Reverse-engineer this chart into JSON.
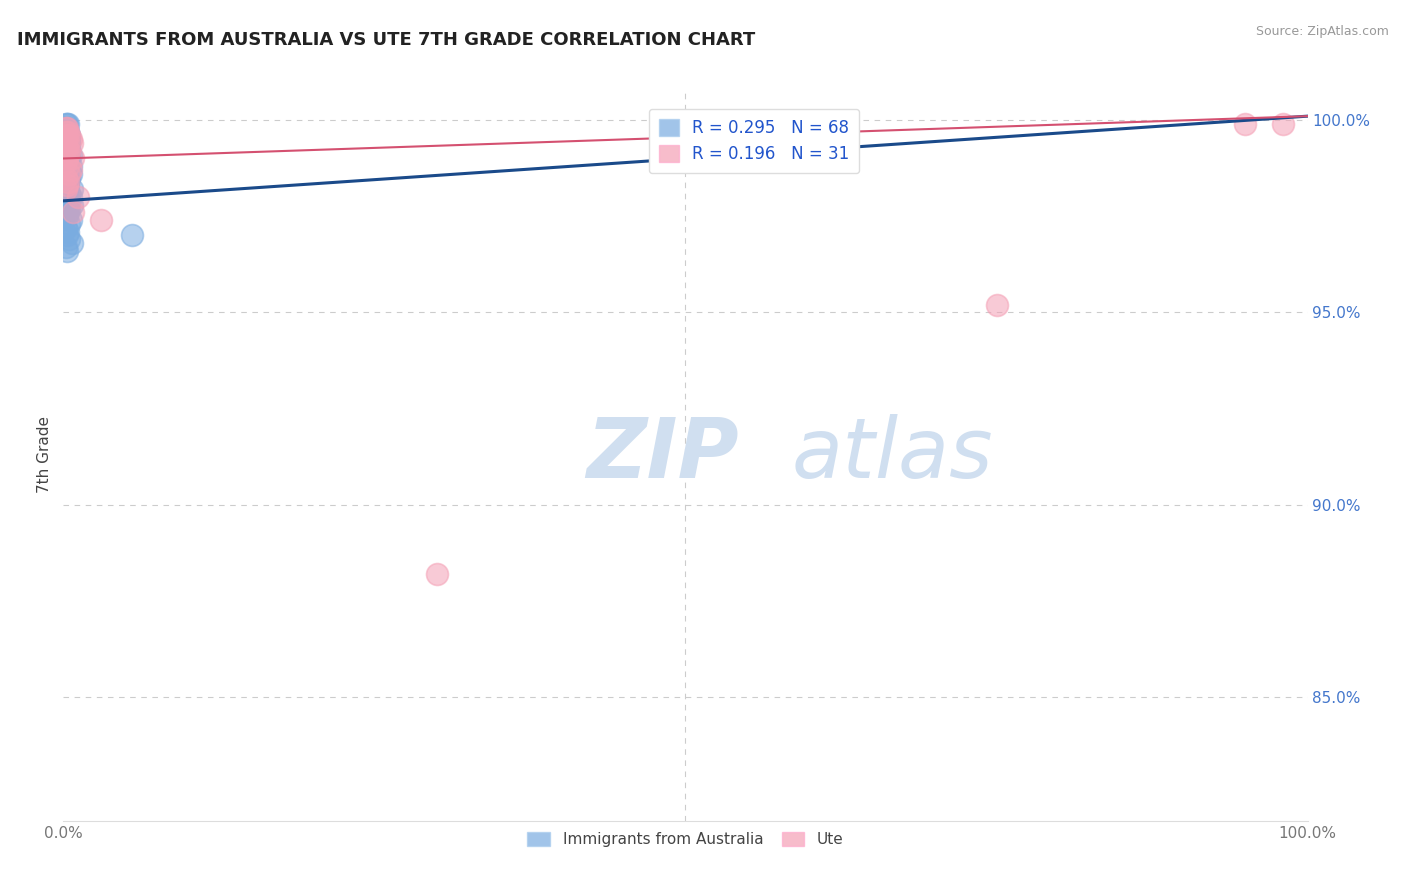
{
  "title": "IMMIGRANTS FROM AUSTRALIA VS UTE 7TH GRADE CORRELATION CHART",
  "source_text": "Source: ZipAtlas.com",
  "ylabel": "7th Grade",
  "xmin": 0.0,
  "xmax": 1.0,
  "ymin": 0.818,
  "ymax": 1.008,
  "xtick_positions": [
    0.0,
    0.5,
    1.0
  ],
  "xtick_labels": [
    "0.0%",
    "",
    "100.0%"
  ],
  "ytick_values": [
    0.85,
    0.9,
    0.95,
    1.0
  ],
  "ytick_labels": [
    "85.0%",
    "90.0%",
    "95.0%",
    "100.0%"
  ],
  "legend_line1": "R = 0.295   N = 68",
  "legend_line2": "R = 0.196   N = 31",
  "blue_color": "#7aace0",
  "pink_color": "#f4a0b5",
  "trendline_blue_color": "#1a4a8a",
  "trendline_pink_color": "#d45070",
  "watermark_color": "#d0dff0",
  "title_color": "#222222",
  "title_fontsize": 13,
  "source_fontsize": 9,
  "tick_label_color_y": "#4477cc",
  "tick_label_color_x": "#777777",
  "ylabel_color": "#444444",
  "grid_color": "#cccccc",
  "background_color": "#ffffff",
  "blue_x": [
    0.002,
    0.003,
    0.004,
    0.002,
    0.003,
    0.001,
    0.004,
    0.003,
    0.002,
    0.005,
    0.003,
    0.004,
    0.003,
    0.005,
    0.002,
    0.003,
    0.004,
    0.005,
    0.004,
    0.005,
    0.002,
    0.003,
    0.003,
    0.004,
    0.006,
    0.002,
    0.004,
    0.003,
    0.005,
    0.004,
    0.002,
    0.003,
    0.006,
    0.004,
    0.004,
    0.002,
    0.003,
    0.006,
    0.004,
    0.005,
    0.002,
    0.004,
    0.003,
    0.004,
    0.002,
    0.007,
    0.003,
    0.005,
    0.004,
    0.006,
    0.002,
    0.003,
    0.007,
    0.004,
    0.005,
    0.002,
    0.004,
    0.003,
    0.006,
    0.005,
    0.002,
    0.004,
    0.003,
    0.005,
    0.007,
    0.002,
    0.003,
    0.055
  ],
  "blue_y": [
    0.999,
    0.999,
    0.999,
    0.998,
    0.998,
    0.997,
    0.997,
    0.997,
    0.996,
    0.996,
    0.996,
    0.996,
    0.995,
    0.995,
    0.995,
    0.994,
    0.994,
    0.994,
    0.993,
    0.993,
    0.993,
    0.992,
    0.992,
    0.992,
    0.991,
    0.991,
    0.991,
    0.99,
    0.99,
    0.99,
    0.989,
    0.989,
    0.988,
    0.988,
    0.987,
    0.987,
    0.986,
    0.986,
    0.985,
    0.985,
    0.984,
    0.984,
    0.983,
    0.983,
    0.982,
    0.982,
    0.981,
    0.981,
    0.98,
    0.98,
    0.979,
    0.979,
    0.978,
    0.978,
    0.977,
    0.977,
    0.976,
    0.975,
    0.974,
    0.973,
    0.972,
    0.971,
    0.97,
    0.969,
    0.968,
    0.967,
    0.966,
    0.97
  ],
  "pink_x": [
    0.002,
    0.003,
    0.004,
    0.002,
    0.005,
    0.003,
    0.006,
    0.002,
    0.004,
    0.007,
    0.003,
    0.002,
    0.005,
    0.004,
    0.003,
    0.008,
    0.002,
    0.004,
    0.006,
    0.005,
    0.002,
    0.004,
    0.003,
    0.002,
    0.3,
    0.75,
    0.95,
    0.98,
    0.03,
    0.012,
    0.008
  ],
  "pink_y": [
    0.998,
    0.998,
    0.997,
    0.997,
    0.996,
    0.996,
    0.995,
    0.995,
    0.994,
    0.994,
    0.993,
    0.993,
    0.992,
    0.991,
    0.99,
    0.99,
    0.989,
    0.988,
    0.987,
    0.986,
    0.985,
    0.984,
    0.983,
    0.982,
    0.882,
    0.952,
    0.999,
    0.999,
    0.974,
    0.98,
    0.976
  ]
}
